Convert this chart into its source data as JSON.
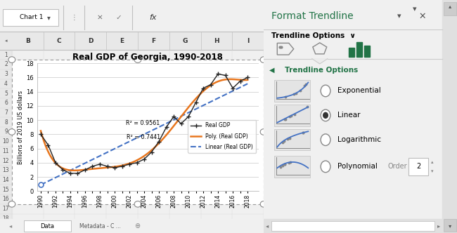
{
  "title": "Real GDP of Georgia, 1990-2018",
  "ylabel": "Billions of 2019 US dollars",
  "years": [
    1990,
    1991,
    1992,
    1993,
    1994,
    1995,
    1996,
    1997,
    1998,
    1999,
    2000,
    2001,
    2002,
    2003,
    2004,
    2005,
    2006,
    2007,
    2008,
    2009,
    2010,
    2011,
    2012,
    2013,
    2014,
    2015,
    2016,
    2017,
    2018
  ],
  "gdp": [
    8.0,
    6.5,
    4.0,
    3.0,
    2.5,
    2.5,
    3.0,
    3.5,
    3.8,
    3.5,
    3.3,
    3.5,
    3.8,
    4.0,
    4.5,
    5.5,
    7.0,
    9.0,
    10.5,
    9.5,
    10.5,
    12.5,
    14.5,
    15.0,
    16.5,
    16.3,
    14.5,
    15.5,
    16.0
  ],
  "r2_poly": "R² = 0.9561",
  "r2_linear": "R² = 0.7441",
  "poly_label": "Poly. (Real GDP)",
  "linear_label": "Linear (Real GDP)",
  "gdp_label": "Real GDP",
  "poly_color": "#E8761E",
  "linear_color": "#4472C4",
  "gdp_color": "#222222",
  "bg_color": "#FFFFFF",
  "excel_bg": "#F0F0F0",
  "header_bg": "#E8E8E8",
  "grid_color": "#C8C8C8",
  "panel_bg": "#EBEBEB",
  "panel_title_color": "#217346",
  "panel_title": "Format Trendline",
  "trendline_options_header": "Trendline Options",
  "trendline_options": [
    "Exponential",
    "Linear",
    "Logarithmic",
    "Polynomial"
  ],
  "selected_option": "Linear",
  "poly_order_label": "Order",
  "poly_order_value": "2",
  "ylim": [
    0,
    18
  ],
  "yticks": [
    0,
    2,
    4,
    6,
    8,
    10,
    12,
    14,
    16,
    18
  ]
}
